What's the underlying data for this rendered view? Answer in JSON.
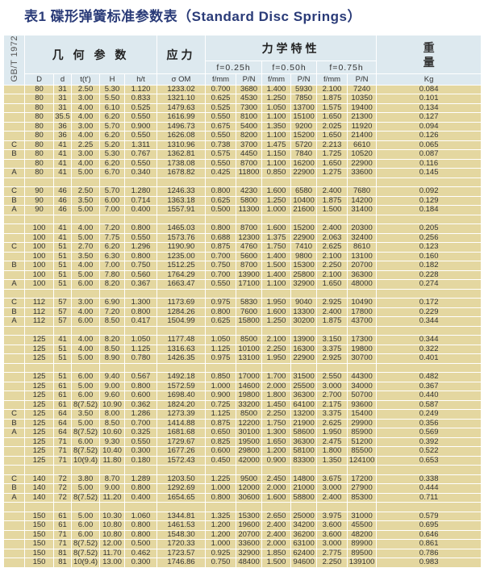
{
  "title": "表1  碟形弹簧标准参数表（Standard Disc Springs）",
  "header": {
    "standard": "GB/T 1972",
    "geometry": "几 何 参 数",
    "stress": "应力",
    "mechanics": "力学特性",
    "weight_1": "重",
    "weight_2": "量",
    "f025": "f=0.25h",
    "f050": "f=0.50h",
    "f075": "f=0.75h",
    "columns": [
      "D",
      "d",
      "t(t')",
      "H",
      "h/t",
      "σ OM",
      "f/mm",
      "P/N",
      "f/mm",
      "P/N",
      "f/mm",
      "P/N",
      "Kg"
    ]
  },
  "rows": [
    [
      "",
      "80",
      "31",
      "2.50",
      "5.30",
      "1.120",
      "1233.02",
      "0.700",
      "3680",
      "1.400",
      "5930",
      "2.100",
      "7240",
      "0.084"
    ],
    [
      "",
      "80",
      "31",
      "3.00",
      "5.50",
      "0.833",
      "1321.10",
      "0.625",
      "4530",
      "1.250",
      "7850",
      "1.875",
      "10350",
      "0.101"
    ],
    [
      "",
      "80",
      "31",
      "4.00",
      "6.10",
      "0.525",
      "1479.63",
      "0.525",
      "7300",
      "1.050",
      "13700",
      "1.575",
      "19400",
      "0.134"
    ],
    [
      "",
      "80",
      "35.5",
      "4.00",
      "6.20",
      "0.550",
      "1616.99",
      "0.550",
      "8100",
      "1.100",
      "15100",
      "1.650",
      "21300",
      "0.127"
    ],
    [
      "",
      "80",
      "36",
      "3.00",
      "5.70",
      "0.900",
      "1496.73",
      "0.675",
      "5400",
      "1.350",
      "9200",
      "2.025",
      "11920",
      "0.094"
    ],
    [
      "",
      "80",
      "36",
      "4.00",
      "6.20",
      "0.550",
      "1626.08",
      "0.550",
      "8200",
      "1.100",
      "15200",
      "1.650",
      "21400",
      "0.126"
    ],
    [
      "C",
      "80",
      "41",
      "2.25",
      "5.20",
      "1.311",
      "1310.96",
      "0.738",
      "3700",
      "1.475",
      "5720",
      "2.213",
      "6610",
      "0.065"
    ],
    [
      "B",
      "80",
      "41",
      "3.00",
      "5.30",
      "0.767",
      "1362.81",
      "0.575",
      "4450",
      "1.150",
      "7840",
      "1.725",
      "10520",
      "0.087"
    ],
    [
      "",
      "80",
      "41",
      "4.00",
      "6.20",
      "0.550",
      "1738.08",
      "0.550",
      "8700",
      "1.100",
      "16200",
      "1.650",
      "22900",
      "0.116"
    ],
    [
      "A",
      "80",
      "41",
      "5.00",
      "6.70",
      "0.340",
      "1678.82",
      "0.425",
      "11800",
      "0.850",
      "22900",
      "1.275",
      "33600",
      "0.145"
    ],
    null,
    [
      "C",
      "90",
      "46",
      "2.50",
      "5.70",
      "1.280",
      "1246.33",
      "0.800",
      "4230",
      "1.600",
      "6580",
      "2.400",
      "7680",
      "0.092"
    ],
    [
      "B",
      "90",
      "46",
      "3.50",
      "6.00",
      "0.714",
      "1363.18",
      "0.625",
      "5800",
      "1.250",
      "10400",
      "1.875",
      "14200",
      "0.129"
    ],
    [
      "A",
      "90",
      "46",
      "5.00",
      "7.00",
      "0.400",
      "1557.91",
      "0.500",
      "11300",
      "1.000",
      "21600",
      "1.500",
      "31400",
      "0.184"
    ],
    null,
    [
      "",
      "100",
      "41",
      "4.00",
      "7.20",
      "0.800",
      "1465.03",
      "0.800",
      "8700",
      "1.600",
      "15200",
      "2.400",
      "20300",
      "0.205"
    ],
    [
      "",
      "100",
      "41",
      "5.00",
      "7.75",
      "0.550",
      "1573.76",
      "0.688",
      "12300",
      "1.375",
      "22900",
      "2.063",
      "32400",
      "0.256"
    ],
    [
      "C",
      "100",
      "51",
      "2.70",
      "6.20",
      "1.296",
      "1190.90",
      "0.875",
      "4760",
      "1.750",
      "7410",
      "2.625",
      "8610",
      "0.123"
    ],
    [
      "",
      "100",
      "51",
      "3.50",
      "6.30",
      "0.800",
      "1235.00",
      "0.700",
      "5600",
      "1.400",
      "9800",
      "2.100",
      "13100",
      "0.160"
    ],
    [
      "B",
      "100",
      "51",
      "4.00",
      "7.00",
      "0.750",
      "1512.25",
      "0.750",
      "8700",
      "1.500",
      "15300",
      "2.250",
      "20700",
      "0.182"
    ],
    [
      "",
      "100",
      "51",
      "5.00",
      "7.80",
      "0.560",
      "1764.29",
      "0.700",
      "13900",
      "1.400",
      "25800",
      "2.100",
      "36300",
      "0.228"
    ],
    [
      "A",
      "100",
      "51",
      "6.00",
      "8.20",
      "0.367",
      "1663.47",
      "0.550",
      "17100",
      "1.100",
      "32900",
      "1.650",
      "48000",
      "0.274"
    ],
    null,
    [
      "C",
      "112",
      "57",
      "3.00",
      "6.90",
      "1.300",
      "1173.69",
      "0.975",
      "5830",
      "1.950",
      "9040",
      "2.925",
      "10490",
      "0.172"
    ],
    [
      "B",
      "112",
      "57",
      "4.00",
      "7.20",
      "0.800",
      "1284.26",
      "0.800",
      "7600",
      "1.600",
      "13300",
      "2.400",
      "17800",
      "0.229"
    ],
    [
      "A",
      "112",
      "57",
      "6.00",
      "8.50",
      "0.417",
      "1504.99",
      "0.625",
      "15800",
      "1.250",
      "30200",
      "1.875",
      "43700",
      "0.344"
    ],
    null,
    [
      "",
      "125",
      "41",
      "4.00",
      "8.20",
      "1.050",
      "1177.48",
      "1.050",
      "8500",
      "2.100",
      "13900",
      "3.150",
      "17300",
      "0.344"
    ],
    [
      "",
      "125",
      "51",
      "4.00",
      "8.50",
      "1.125",
      "1316.63",
      "1.125",
      "10100",
      "2.250",
      "16300",
      "3.375",
      "19800",
      "0.322"
    ],
    [
      "",
      "125",
      "51",
      "5.00",
      "8.90",
      "0.780",
      "1426.35",
      "0.975",
      "13100",
      "1.950",
      "22900",
      "2.925",
      "30700",
      "0.401"
    ],
    null,
    [
      "",
      "125",
      "51",
      "6.00",
      "9.40",
      "0.567",
      "1492.18",
      "0.850",
      "17000",
      "1.700",
      "31500",
      "2.550",
      "44300",
      "0.482"
    ],
    [
      "",
      "125",
      "61",
      "5.00",
      "9.00",
      "0.800",
      "1572.59",
      "1.000",
      "14600",
      "2.000",
      "25500",
      "3.000",
      "34000",
      "0.367"
    ],
    [
      "",
      "125",
      "61",
      "6.00",
      "9.60",
      "0.600",
      "1698.40",
      "0.900",
      "19800",
      "1.800",
      "36300",
      "2.700",
      "50700",
      "0.440"
    ],
    [
      "",
      "125",
      "61",
      "8(7.52)",
      "10.90",
      "0.362",
      "1824.20",
      "0.725",
      "33200",
      "1.450",
      "64100",
      "2.175",
      "93600",
      "0.587"
    ],
    [
      "C",
      "125",
      "64",
      "3.50",
      "8.00",
      "1.286",
      "1273.39",
      "1.125",
      "8500",
      "2.250",
      "13200",
      "3.375",
      "15400",
      "0.249"
    ],
    [
      "B",
      "125",
      "64",
      "5.00",
      "8.50",
      "0.700",
      "1414.88",
      "0.875",
      "12200",
      "1.750",
      "21900",
      "2.625",
      "29900",
      "0.356"
    ],
    [
      "A",
      "125",
      "64",
      "8(7.52)",
      "10.60",
      "0.325",
      "1681.68",
      "0.650",
      "30100",
      "1.300",
      "58600",
      "1.950",
      "85900",
      "0.569"
    ],
    [
      "",
      "125",
      "71",
      "6.00",
      "9.30",
      "0.550",
      "1729.67",
      "0.825",
      "19500",
      "1.650",
      "36300",
      "2.475",
      "51200",
      "0.392"
    ],
    [
      "",
      "125",
      "71",
      "8(7.52)",
      "10.40",
      "0.300",
      "1677.26",
      "0.600",
      "29800",
      "1.200",
      "58100",
      "1.800",
      "85500",
      "0.522"
    ],
    [
      "",
      "125",
      "71",
      "10(9.4)",
      "11.80",
      "0.180",
      "1572.43",
      "0.450",
      "42000",
      "0.900",
      "83300",
      "1.350",
      "124100",
      "0.653"
    ],
    null,
    [
      "C",
      "140",
      "72",
      "3.80",
      "8.70",
      "1.289",
      "1203.50",
      "1.225",
      "9500",
      "2.450",
      "14800",
      "3.675",
      "17200",
      "0.338"
    ],
    [
      "B",
      "140",
      "72",
      "5.00",
      "9.00",
      "0.800",
      "1292.69",
      "1.000",
      "12000",
      "2.000",
      "21000",
      "3.000",
      "27900",
      "0.444"
    ],
    [
      "A",
      "140",
      "72",
      "8(7.52)",
      "11.20",
      "0.400",
      "1654.65",
      "0.800",
      "30600",
      "1.600",
      "58800",
      "2.400",
      "85300",
      "0.711"
    ],
    null,
    [
      "",
      "150",
      "61",
      "5.00",
      "10.30",
      "1.060",
      "1344.81",
      "1.325",
      "15300",
      "2.650",
      "25000",
      "3.975",
      "31000",
      "0.579"
    ],
    [
      "",
      "150",
      "61",
      "6.00",
      "10.80",
      "0.800",
      "1461.53",
      "1.200",
      "19600",
      "2.400",
      "34200",
      "3.600",
      "45500",
      "0.695"
    ],
    [
      "",
      "150",
      "71",
      "6.00",
      "10.80",
      "0.800",
      "1548.30",
      "1.200",
      "20700",
      "2.400",
      "36200",
      "3.600",
      "48200",
      "0.646"
    ],
    [
      "",
      "150",
      "71",
      "8(7.52)",
      "12.00",
      "0.500",
      "1720.33",
      "1.000",
      "33600",
      "2.000",
      "63100",
      "3.000",
      "89900",
      "0.861"
    ],
    [
      "",
      "150",
      "81",
      "8(7.52)",
      "11.70",
      "0.462",
      "1723.57",
      "0.925",
      "32900",
      "1.850",
      "62400",
      "2.775",
      "89500",
      "0.786"
    ],
    [
      "",
      "150",
      "81",
      "10(9.4)",
      "13.00",
      "0.300",
      "1746.86",
      "0.750",
      "48400",
      "1.500",
      "94600",
      "2.250",
      "139100",
      "0.983"
    ]
  ]
}
